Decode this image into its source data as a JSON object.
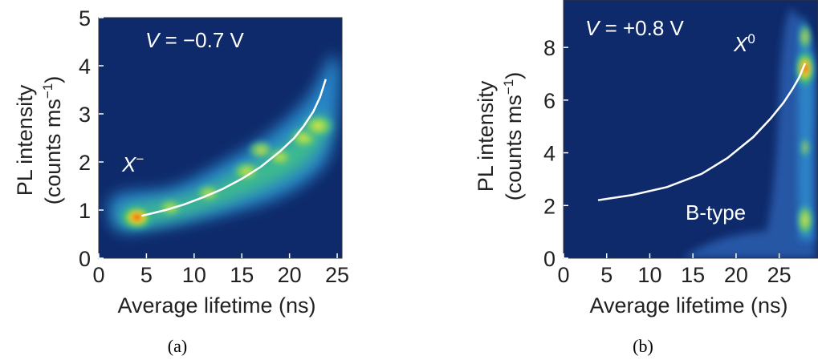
{
  "chart_data": [
    {
      "type": "heatmap",
      "panel_label": "(a)",
      "xlabel": "Average lifetime (ns)",
      "ylabel_line1": "PL intensity",
      "ylabel_line2_prefix": "(counts ms",
      "ylabel_line2_sup": "−1",
      "ylabel_line2_suffix": ")",
      "xlim": [
        0,
        25.5
      ],
      "ylim": [
        0,
        5
      ],
      "xticks": [
        0,
        5,
        10,
        15,
        20,
        25
      ],
      "yticks": [
        0,
        1,
        2,
        3,
        4,
        5
      ],
      "annotations": [
        {
          "label": "V",
          "text": " = −0.7 V",
          "x": 4.5,
          "y": 4.45
        },
        {
          "label": "X",
          "sup": "−",
          "x": 1.8,
          "y": 1.95
        }
      ],
      "fit_curve": {
        "x": [
          4.5,
          7,
          9,
          11,
          13,
          15,
          17,
          19,
          20.5,
          21.5,
          22.5,
          23.2,
          23.8
        ],
        "y": [
          0.88,
          1.0,
          1.12,
          1.27,
          1.44,
          1.65,
          1.9,
          2.22,
          2.5,
          2.75,
          3.05,
          3.35,
          3.72
        ]
      },
      "density_hotspots": [
        {
          "x": 4.0,
          "y": 0.85,
          "level": 1.0
        },
        {
          "x": 7.5,
          "y": 1.05,
          "level": 0.55
        },
        {
          "x": 11.5,
          "y": 1.35,
          "level": 0.55
        },
        {
          "x": 15.5,
          "y": 1.8,
          "level": 0.7
        },
        {
          "x": 19.0,
          "y": 2.1,
          "level": 0.6
        },
        {
          "x": 21.5,
          "y": 2.5,
          "level": 0.75
        },
        {
          "x": 23.0,
          "y": 2.75,
          "level": 0.85
        },
        {
          "x": 17.0,
          "y": 2.25,
          "level": 0.6
        }
      ]
    },
    {
      "type": "heatmap",
      "panel_label": "(b)",
      "xlabel": "Average lifetime (ns)",
      "ylabel_line1": "PL intensity",
      "ylabel_line2_prefix": "(counts ms",
      "ylabel_line2_sup": "−1",
      "ylabel_line2_suffix": ")",
      "xlim": [
        0,
        29.5
      ],
      "ylim": [
        0,
        9.8
      ],
      "xticks": [
        0,
        5,
        10,
        15,
        20,
        25
      ],
      "yticks": [
        0,
        2,
        4,
        6,
        8
      ],
      "annotations": [
        {
          "label": "V",
          "text": " = +0.8 V",
          "x": 1.0,
          "y": 9.0
        },
        {
          "label": "X",
          "sup": "0",
          "x": 23.5,
          "y": 7.8
        },
        {
          "label": "",
          "text": "B-type",
          "x": 17.0,
          "y": 1.6
        }
      ],
      "fit_curve": {
        "x": [
          4.0,
          8,
          12,
          16,
          19,
          22,
          24,
          25.5,
          26.5,
          27.3,
          28.0
        ],
        "y": [
          2.2,
          2.4,
          2.7,
          3.2,
          3.8,
          4.6,
          5.3,
          5.9,
          6.4,
          6.85,
          7.4
        ]
      },
      "density_hotspots": [
        {
          "x": 28.0,
          "y": 7.2,
          "level": 1.0
        },
        {
          "x": 28.0,
          "y": 8.4,
          "level": 0.5
        },
        {
          "x": 28.0,
          "y": 1.45,
          "level": 0.75
        },
        {
          "x": 28.0,
          "y": 4.2,
          "level": 0.25
        }
      ]
    }
  ]
}
